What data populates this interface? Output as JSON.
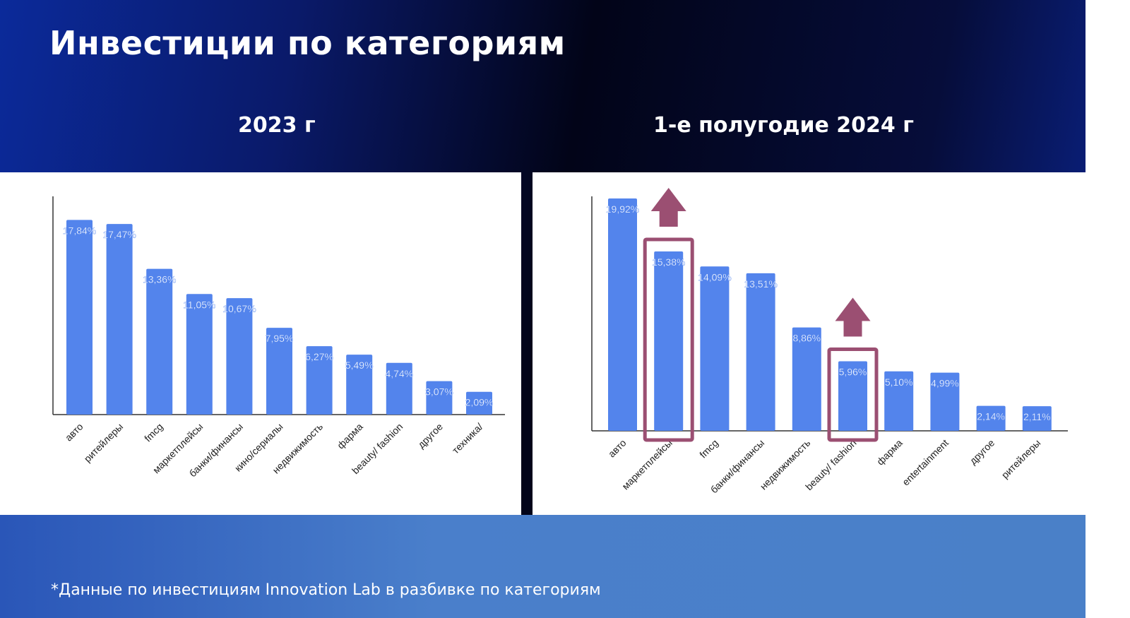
{
  "title": "Инвестиции по категориям",
  "footnote": "*Данные по инвестициям Innovation Lab в разбивке по категориям",
  "colors": {
    "bar": "#5384ec",
    "highlight": "#9b4f72"
  },
  "chart_data": [
    {
      "type": "bar",
      "title": "2023 г",
      "categories": [
        "авто",
        "ритейлеры",
        "fmcg",
        "маркетплейсы",
        "банки/финансы",
        "кино/сериалы",
        "недвижимость",
        "фарма",
        "beauty/ fashion",
        "другое",
        "техника/"
      ],
      "values": [
        17.84,
        17.47,
        13.36,
        11.05,
        10.67,
        7.95,
        6.27,
        5.49,
        4.74,
        3.07,
        2.09
      ],
      "labels": [
        "17,84%",
        "17,47%",
        "13,36%",
        "11,05%",
        "10,67%",
        "7,95%",
        "6,27%",
        "5,49%",
        "4,74%",
        "3,07%",
        "2,09%"
      ],
      "ylim": [
        0,
        20
      ],
      "grid": false
    },
    {
      "type": "bar",
      "title": "1-е полугодие 2024 г",
      "categories": [
        "авто",
        "маркетплейсы",
        "fmcg",
        "банки/финансы",
        "недвижимость",
        "beauty/ fashion",
        "фарма",
        "entertainment",
        "другое",
        "ритейлеры"
      ],
      "values": [
        19.92,
        15.38,
        14.09,
        13.51,
        8.86,
        5.96,
        5.1,
        4.99,
        2.14,
        2.11
      ],
      "labels": [
        "19,92%",
        "15,38%",
        "14,09%",
        "13,51%",
        "8,86%",
        "5,96%",
        "5,10%",
        "4,99%",
        "2,14%",
        "2,11%"
      ],
      "ylim": [
        0,
        20.1
      ],
      "grid": false,
      "highlighted": [
        "маркетплейсы",
        "beauty/ fashion"
      ],
      "annotations": "up-arrow above highlighted bars"
    }
  ]
}
